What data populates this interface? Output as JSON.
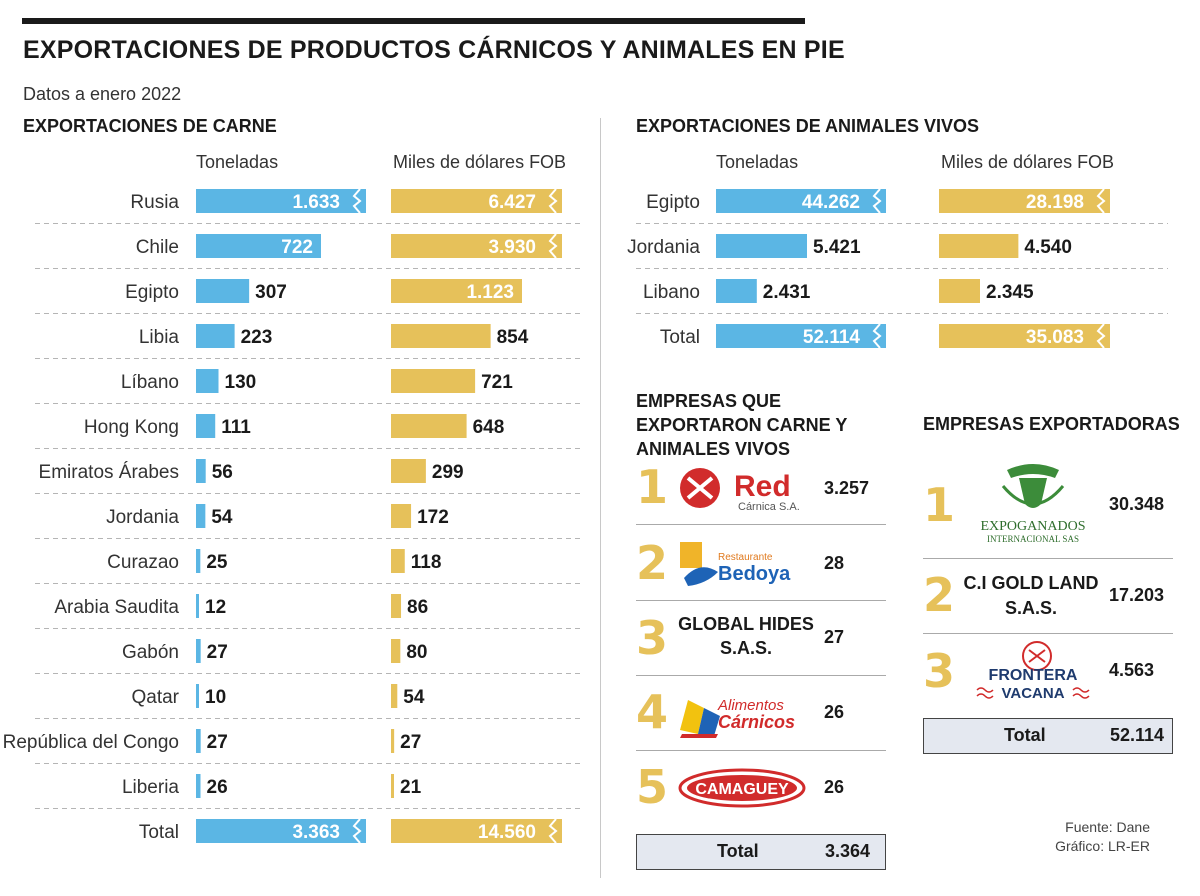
{
  "header": {
    "title": "EXPORTACIONES DE PRODUCTOS CÁRNICOS Y ANIMALES EN PIE",
    "subtitle": "Datos a enero 2022"
  },
  "colors": {
    "blue": "#5bb6e4",
    "gold": "#e6c15a",
    "total_bg": "#e4e8f0"
  },
  "chart_data": [
    {
      "type": "bar",
      "title": "EXPORTACIONES DE CARNE",
      "categories": [
        "Rusia",
        "Chile",
        "Egipto",
        "Libia",
        "Líbano",
        "Hong Kong",
        "Emiratos Árabes",
        "Jordania",
        "Curazao",
        "Arabia Saudita",
        "Gabón",
        "Qatar",
        "República del Congo",
        "Liberia",
        "Total"
      ],
      "series": [
        {
          "name": "Toneladas",
          "values": [
            1633,
            722,
            307,
            223,
            130,
            111,
            56,
            54,
            25,
            12,
            27,
            10,
            27,
            26,
            3363
          ],
          "labels": [
            "1.633",
            "722",
            "307",
            "223",
            "130",
            "111",
            "56",
            "54",
            "25",
            "12",
            "27",
            "10",
            "27",
            "26",
            "3.363"
          ],
          "broken": [
            true,
            false,
            false,
            false,
            false,
            false,
            false,
            false,
            false,
            false,
            false,
            false,
            false,
            false,
            true
          ]
        },
        {
          "name": "Miles de dólares FOB",
          "values": [
            6427,
            3930,
            1123,
            854,
            721,
            648,
            299,
            172,
            118,
            86,
            80,
            54,
            27,
            21,
            14560
          ],
          "labels": [
            "6.427",
            "3.930",
            "1.123",
            "854",
            "721",
            "648",
            "299",
            "172",
            "118",
            "86",
            "80",
            "54",
            "27",
            "21",
            "14.560"
          ],
          "broken": [
            true,
            true,
            false,
            false,
            false,
            false,
            false,
            false,
            false,
            false,
            false,
            false,
            false,
            false,
            true
          ]
        }
      ]
    },
    {
      "type": "bar",
      "title": "EXPORTACIONES DE ANIMALES VIVOS",
      "categories": [
        "Egipto",
        "Jordania",
        "Libano",
        "Total"
      ],
      "series": [
        {
          "name": "Toneladas",
          "values": [
            44262,
            5421,
            2431,
            52114
          ],
          "labels": [
            "44.262",
            "5.421",
            "2.431",
            "52.114"
          ],
          "broken": [
            true,
            false,
            false,
            true
          ]
        },
        {
          "name": "Miles de dólares FOB",
          "values": [
            28198,
            4540,
            2345,
            35083
          ],
          "labels": [
            "28.198",
            "4.540",
            "2.345",
            "35.083"
          ],
          "broken": [
            true,
            false,
            false,
            true
          ]
        }
      ]
    },
    {
      "type": "table",
      "title": "EMPRESAS QUE EXPORTARON CARNE Y ANIMALES VIVOS",
      "rows": [
        {
          "rank": "1",
          "logo": "red-carnica-logo",
          "logo_text": "Red",
          "logo_sub": "Cárnica S.A.",
          "value": "3.257"
        },
        {
          "rank": "2",
          "logo": "restaurante-bedoya-logo",
          "logo_text": "Bedoya",
          "logo_sub": "Restaurante",
          "value": "28"
        },
        {
          "rank": "3",
          "name": "GLOBAL HIDES S.A.S.",
          "value": "27"
        },
        {
          "rank": "4",
          "logo": "alimentos-carnicos-logo",
          "logo_text": "Cárnicos",
          "logo_sub": "Alimentos",
          "value": "26"
        },
        {
          "rank": "5",
          "logo": "camaguey-logo",
          "logo_text": "CAMAGUEY",
          "value": "26"
        }
      ],
      "total_label": "Total",
      "total_value": "3.364"
    },
    {
      "type": "table",
      "title": "EMPRESAS EXPORTADORAS",
      "rows": [
        {
          "rank": "1",
          "logo": "expoganados-logo",
          "logo_text": "EXPOGANADOS",
          "logo_sub": "INTERNACIONAL SAS",
          "value": "30.348"
        },
        {
          "rank": "2",
          "name": "C.I GOLD LAND S.A.S.",
          "value": "17.203"
        },
        {
          "rank": "3",
          "logo": "frontera-vacana-logo",
          "logo_text": "FRONTERA",
          "logo_sub": "VACANA",
          "value": "4.563"
        }
      ],
      "total_label": "Total",
      "total_value": "52.114"
    }
  ],
  "footer": {
    "source": "Fuente: Dane",
    "credit": "Gráfico: LR-ER"
  }
}
